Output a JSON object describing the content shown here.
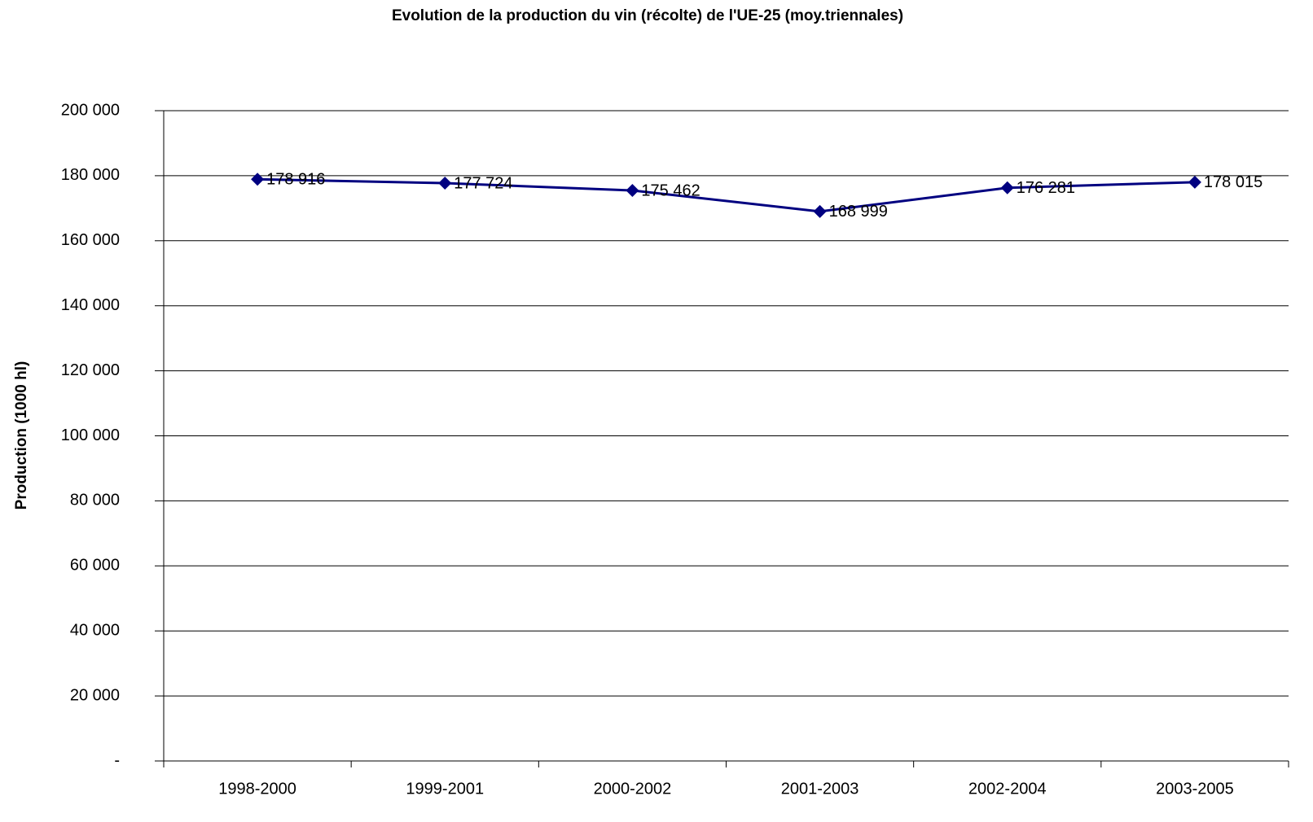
{
  "chart_data": {
    "type": "line",
    "title": "Evolution de la production du vin (récolte) de l'UE-25 (moy.triennales)",
    "y_label": "Production (1000 hl)",
    "categories": [
      "1998-2000",
      "1999-2001",
      "2000-2002",
      "2001-2003",
      "2002-2004",
      "2003-2005"
    ],
    "series": [
      {
        "name": "Production",
        "color": "#000080",
        "values": [
          178916,
          177724,
          175462,
          168999,
          176281,
          178015
        ],
        "value_labels": [
          "178 916",
          "177 724",
          "175 462",
          "168 999",
          "176 281",
          "178 015"
        ]
      }
    ],
    "ylim": [
      0,
      200000
    ],
    "yticks": [
      {
        "value": 0,
        "label": "-"
      },
      {
        "value": 20000,
        "label": "20 000"
      },
      {
        "value": 40000,
        "label": "40 000"
      },
      {
        "value": 60000,
        "label": "60 000"
      },
      {
        "value": 80000,
        "label": "80 000"
      },
      {
        "value": 100000,
        "label": "100 000"
      },
      {
        "value": 120000,
        "label": "120 000"
      },
      {
        "value": 140000,
        "label": "140 000"
      },
      {
        "value": 160000,
        "label": "160 000"
      },
      {
        "value": 180000,
        "label": "180 000"
      },
      {
        "value": 200000,
        "label": "200 000"
      }
    ],
    "grid": true
  }
}
